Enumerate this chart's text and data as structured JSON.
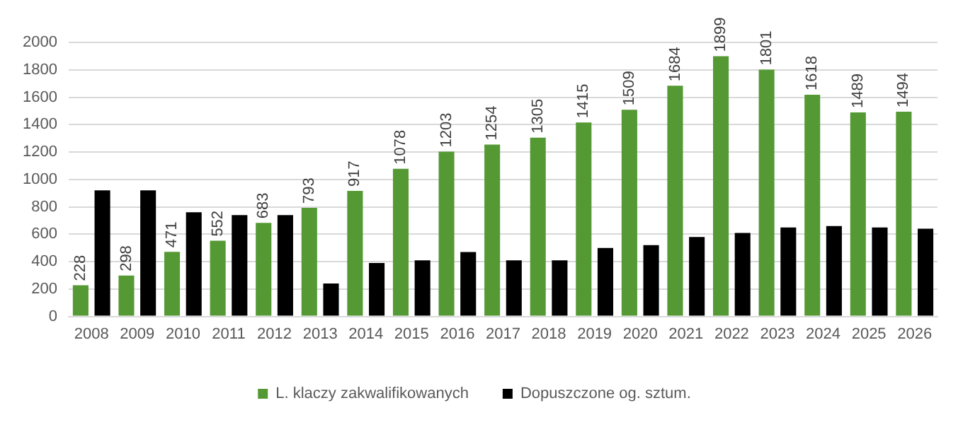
{
  "chart_data": {
    "type": "bar",
    "categories": [
      "2008",
      "2009",
      "2010",
      "2011",
      "2012",
      "2013",
      "2014",
      "2015",
      "2016",
      "2017",
      "2018",
      "2019",
      "2020",
      "2021",
      "2022",
      "2023",
      "2024",
      "2025",
      "2026"
    ],
    "series": [
      {
        "name": "L. klaczy zakwalifikowanych",
        "color": "#559935",
        "values": [
          228,
          298,
          471,
          552,
          683,
          793,
          917,
          1078,
          1203,
          1254,
          1305,
          1415,
          1509,
          1684,
          1899,
          1801,
          1618,
          1489,
          1494
        ],
        "value_labels": [
          "228",
          "298",
          "471",
          "552",
          "683",
          "793",
          "917",
          "1078",
          "1203",
          "1254",
          "1305",
          "1415",
          "1509",
          "1684",
          "1899",
          "1801",
          "1618",
          "1489",
          "1494"
        ]
      },
      {
        "name": "Dopuszczone og. sztum.",
        "color": "#000000",
        "values": [
          920,
          920,
          760,
          740,
          740,
          240,
          390,
          410,
          470,
          410,
          410,
          500,
          520,
          580,
          610,
          650,
          660,
          650,
          640
        ]
      }
    ],
    "ylim": [
      0,
      2000
    ],
    "yticks": [
      0,
      200,
      400,
      600,
      800,
      1000,
      1200,
      1400,
      1600,
      1800,
      2000
    ],
    "grid": "y",
    "legend": "bottom"
  }
}
